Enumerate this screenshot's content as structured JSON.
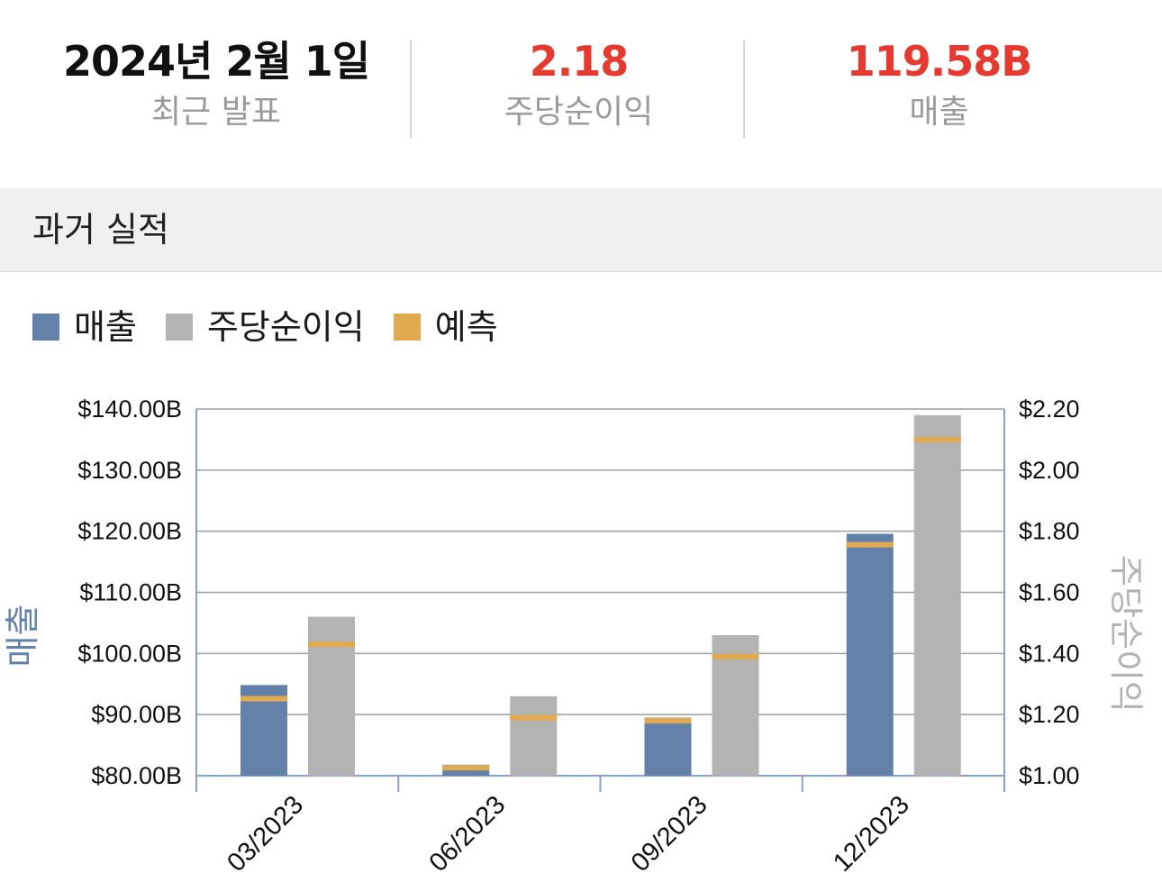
{
  "summary": {
    "date_value": "2024년 2월 1일",
    "date_label": "최근 발표",
    "eps_value": "2.18",
    "eps_label": "주당순이익",
    "revenue_value": "119.58B",
    "revenue_label": "매출"
  },
  "section": {
    "title": "과거 실적"
  },
  "colors": {
    "revenue": "#6481a9",
    "eps": "#b3b3b3",
    "forecast": "#e1aa4f",
    "highlight": "#e53a2f",
    "axis": "#8aa3c4",
    "grid": "#9e9e9e"
  },
  "legend": [
    {
      "label": "매출",
      "color": "#6481a9"
    },
    {
      "label": "주당순이익",
      "color": "#b3b3b3"
    },
    {
      "label": "예측",
      "color": "#e1aa4f"
    }
  ],
  "chart_data": {
    "type": "bar",
    "categories": [
      "03/2023",
      "06/2023",
      "09/2023",
      "12/2023"
    ],
    "series": [
      {
        "name": "매출",
        "axis": "left",
        "values": [
          94.84,
          81.8,
          89.5,
          119.58
        ],
        "forecast": [
          92.6,
          81.3,
          89.0,
          117.8
        ]
      },
      {
        "name": "주당순이익",
        "axis": "right",
        "values": [
          1.52,
          1.26,
          1.46,
          2.18
        ],
        "forecast": [
          1.43,
          1.19,
          1.39,
          2.1
        ]
      }
    ],
    "left_axis": {
      "label": "매출",
      "ylim": [
        80,
        140
      ],
      "ticks": [
        80,
        90,
        100,
        110,
        120,
        130,
        140
      ],
      "tick_labels": [
        "$80.00B",
        "$90.00B",
        "$100.00B",
        "$110.00B",
        "$120.00B",
        "$130.00B",
        "$140.00B"
      ]
    },
    "right_axis": {
      "label": "주당순이익",
      "ylim": [
        1.0,
        2.2
      ],
      "ticks": [
        1.0,
        1.2,
        1.4,
        1.6,
        1.8,
        2.0,
        2.2
      ],
      "tick_labels": [
        "$1.00",
        "$1.20",
        "$1.40",
        "$1.60",
        "$1.80",
        "$2.00",
        "$2.20"
      ]
    },
    "grid": true,
    "legend_position": "top-left"
  }
}
